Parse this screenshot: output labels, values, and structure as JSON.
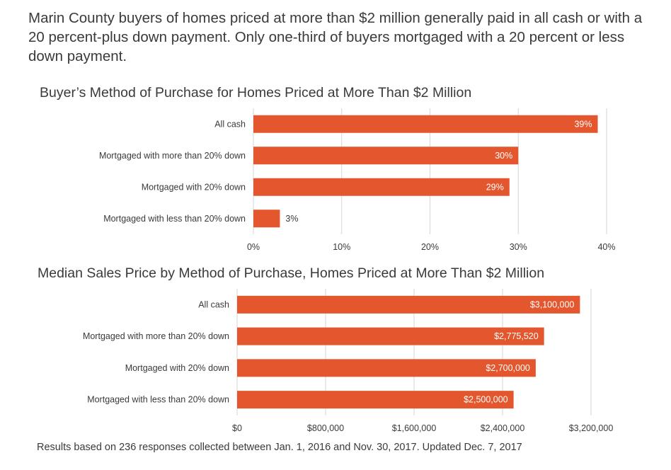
{
  "intro": "Marin County buyers of homes priced at more than $2 million generally paid in all cash or with a 20 percent-plus down payment. Only one-third of buyers mortgaged with a 20 percent or less down payment.",
  "footer": "Results based on 236 responses collected between Jan. 1, 2016 and Nov. 30, 2017. Updated Dec. 7, 2017",
  "colors": {
    "bar": "#e4572e",
    "grid": "#d6d6d6",
    "text": "#3a3a3a"
  },
  "chart_data": [
    {
      "type": "bar",
      "orientation": "horizontal",
      "title": "Buyer’s Method of Purchase for Homes Priced at More Than $2 Million",
      "categories": [
        "All cash",
        "Mortgaged with more than 20% down",
        "Mortgaged with 20% down",
        "Mortgaged with less than 20% down"
      ],
      "values": [
        39,
        30,
        29,
        3
      ],
      "value_labels": [
        "39%",
        "30%",
        "29%",
        "3%"
      ],
      "xlim": [
        0,
        40
      ],
      "ticks": [
        "0%",
        "10%",
        "20%",
        "30%",
        "40%"
      ],
      "grid": true
    },
    {
      "type": "bar",
      "orientation": "horizontal",
      "title": "Median Sales Price by Method of Purchase, Homes Priced at More Than $2 Million",
      "categories": [
        "All cash",
        "Mortgaged with more than 20% down",
        "Mortgaged with 20% down",
        "Mortgaged with less than 20% down"
      ],
      "values": [
        3100000,
        2775520,
        2700000,
        2500000
      ],
      "value_labels": [
        "$3,100,000",
        "$2,775,520",
        "$2,700,000",
        "$2,500,000"
      ],
      "xlim": [
        0,
        3200000
      ],
      "ticks": [
        "$0",
        "$800,000",
        "$1,600,000",
        "$2,400,000",
        "$3,200,000"
      ],
      "grid": true
    }
  ]
}
